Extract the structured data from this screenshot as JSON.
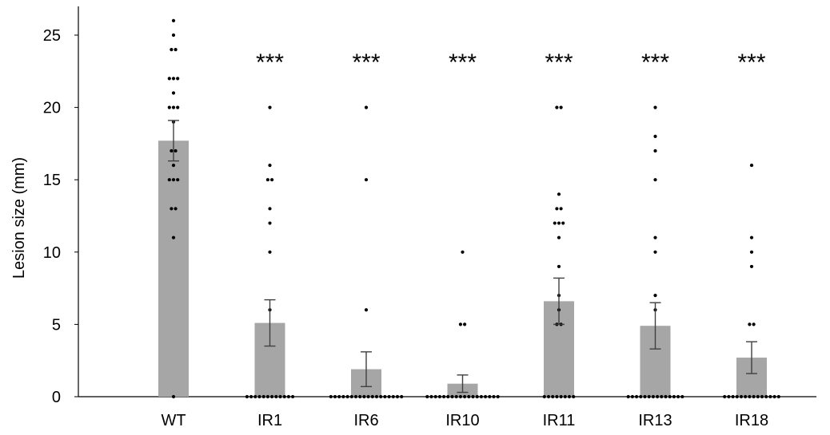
{
  "chart_data": {
    "type": "bar",
    "ylabel": "Lesion size (mm)",
    "ylim": [
      0,
      27
    ],
    "yticks": [
      0,
      5,
      10,
      15,
      20,
      25
    ],
    "categories": [
      "WT",
      "IR1",
      "IR6",
      "IR10",
      "IR11",
      "IR13",
      "IR18"
    ],
    "series": [
      {
        "values": [
          17.7,
          5.1,
          1.9,
          0.9,
          6.6,
          4.9,
          2.7
        ]
      }
    ],
    "error": [
      1.4,
      1.6,
      1.2,
      0.6,
      1.6,
      1.6,
      1.1
    ],
    "significance": [
      "",
      "***",
      "***",
      "***",
      "***",
      "***",
      "***"
    ],
    "points": [
      [
        0,
        11,
        13,
        13,
        15,
        15,
        15,
        16,
        17,
        17,
        19,
        20,
        20,
        20,
        21,
        22,
        22,
        22,
        24,
        24,
        25,
        26
      ],
      [
        0,
        0,
        0,
        0,
        0,
        0,
        0,
        0,
        0,
        0,
        0,
        0,
        6,
        10,
        12,
        13,
        15,
        15,
        16,
        20
      ],
      [
        0,
        0,
        0,
        0,
        0,
        0,
        0,
        0,
        0,
        0,
        0,
        0,
        0,
        0,
        0,
        0,
        0,
        0,
        6,
        15,
        20
      ],
      [
        0,
        0,
        0,
        0,
        0,
        0,
        0,
        0,
        0,
        0,
        0,
        0,
        0,
        0,
        0,
        0,
        0,
        0,
        5,
        5,
        10
      ],
      [
        0,
        0,
        0,
        0,
        0,
        0,
        0,
        0,
        5,
        5,
        6,
        7,
        9,
        11,
        12,
        12,
        12,
        13,
        13,
        14,
        20,
        20
      ],
      [
        0,
        0,
        0,
        0,
        0,
        0,
        0,
        0,
        0,
        0,
        0,
        0,
        0,
        0,
        6,
        7,
        10,
        11,
        15,
        17,
        18,
        20
      ],
      [
        0,
        0,
        0,
        0,
        0,
        0,
        0,
        0,
        0,
        0,
        0,
        0,
        0,
        0,
        5,
        5,
        9,
        10,
        11,
        16
      ]
    ],
    "colors": {
      "bar": "#a6a6a6",
      "points": "#000000",
      "axis": "#000000",
      "error": "#404040"
    },
    "grid": false,
    "legend": "none"
  }
}
